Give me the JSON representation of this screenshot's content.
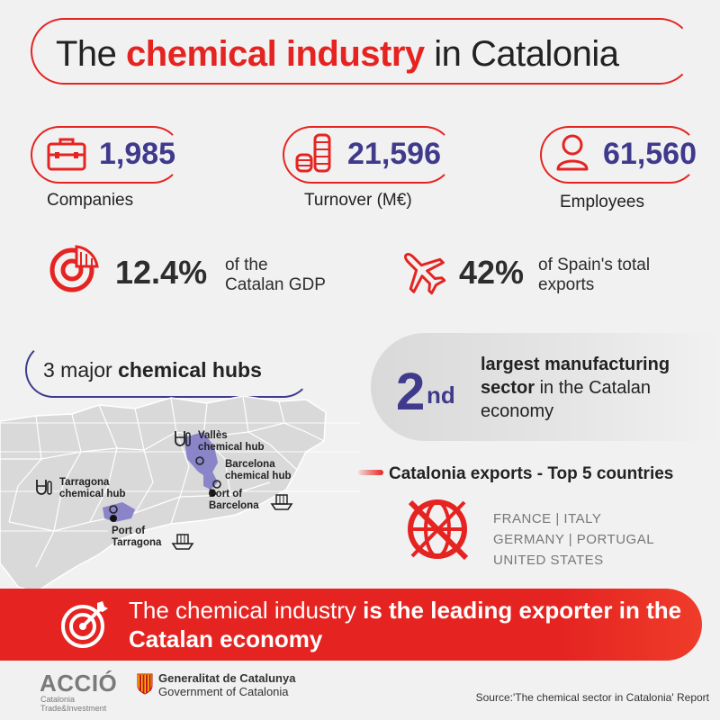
{
  "title": {
    "pre": "The ",
    "highlight": "chemical industry",
    "post": " in Catalonia"
  },
  "stats": [
    {
      "icon": "briefcase-icon",
      "value": "1,985",
      "label": "Companies"
    },
    {
      "icon": "coins-icon",
      "value": "21,596",
      "label": "Turnover (M€)"
    },
    {
      "icon": "person-icon",
      "value": "61,560",
      "label": "Employees"
    }
  ],
  "gdp": {
    "icon": "pie-chart-icon",
    "value": "12.4%",
    "line1": "of the",
    "line2": "Catalan GDP"
  },
  "exports_share": {
    "icon": "airplane-icon",
    "value": "42%",
    "line1": "of Spain's total",
    "line2": "exports"
  },
  "hubs": {
    "pre": "3 major ",
    "bold": "chemical hubs"
  },
  "map": {
    "labels": {
      "valles": [
        "Vallès",
        "chemical hub"
      ],
      "barcelona": [
        "Barcelona",
        "chemical hub"
      ],
      "port_barcelona": [
        "Port of",
        "Barcelona"
      ],
      "tarragona": [
        "Tarragona",
        "chemical hub"
      ],
      "port_tarragona": [
        "Port of",
        "Tarragona"
      ]
    }
  },
  "sector_rank": {
    "number": "2",
    "suffix": "nd",
    "bold": "largest manufacturing sector",
    "rest": " in the Catalan economy"
  },
  "exports_top": {
    "heading": "Catalonia exports - Top 5 countries",
    "row1": "FRANCE  |  ITALY",
    "row2": "GERMANY  |  PORTUGAL",
    "row3": "UNITED STATES"
  },
  "banner": {
    "normal": "The chemical industry ",
    "bold": "is the leading exporter in the Catalan economy"
  },
  "footer": {
    "accio": "ACCIÓ",
    "accio_sub1": "Catalonia",
    "accio_sub2": "Trade&Investment",
    "gen_line1": "Generalitat de Catalunya",
    "gen_line2": "Government of Catalonia",
    "source": "Source:'The chemical sector in Catalonia' Report"
  },
  "colors": {
    "red": "#e52421",
    "purple": "#3f3a8c",
    "region": "#8a84c8",
    "background": "#f1f1f1"
  }
}
